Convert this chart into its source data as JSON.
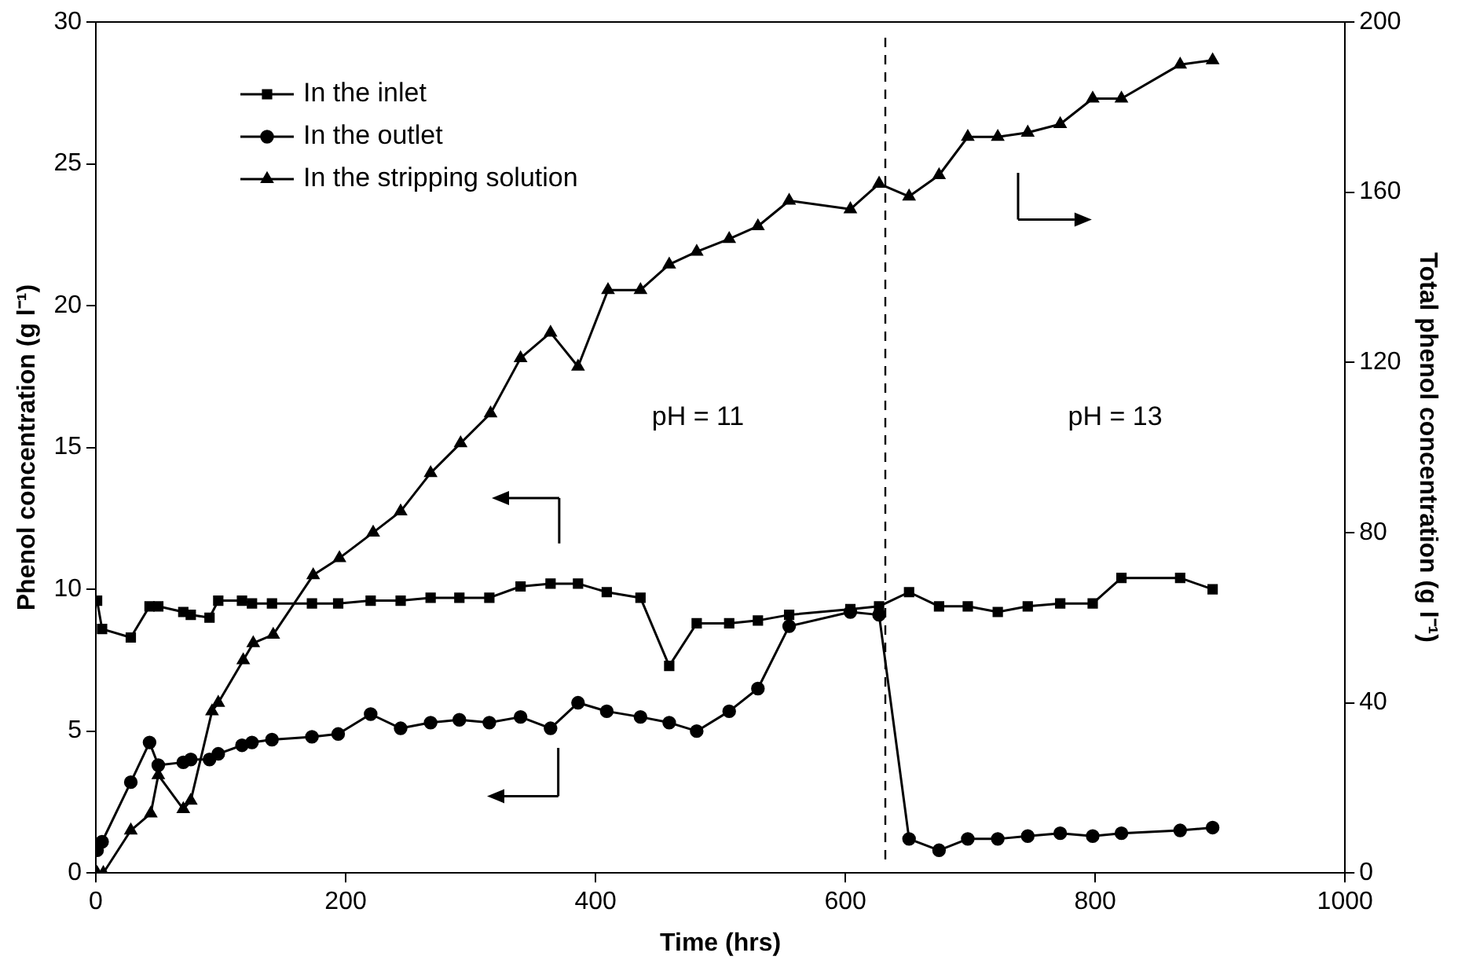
{
  "chart_data": {
    "type": "line",
    "xlabel": "Time (hrs)",
    "ylabel": "Phenol concentration (g l⁻¹)",
    "y2label": "Total phenol concentration (g l⁻¹)",
    "xlim": [
      0,
      1000
    ],
    "xticks": [
      0,
      200,
      400,
      600,
      800,
      1000
    ],
    "ylim": [
      0,
      30
    ],
    "yticks": [
      0,
      5,
      10,
      15,
      20,
      25,
      30
    ],
    "y2lim": [
      0,
      200
    ],
    "y2ticks": [
      0,
      40,
      80,
      120,
      160,
      200
    ],
    "grid": false,
    "legend": "top left",
    "line_style": "solid",
    "series": [
      {
        "name": "In the inlet",
        "color": "#000000",
        "marker": "square",
        "x": [
          1,
          5,
          28,
          43,
          50,
          70,
          76,
          91,
          98,
          117,
          125,
          141,
          173,
          194,
          220,
          244,
          268,
          291,
          315,
          340,
          364,
          386,
          409,
          436,
          459,
          481,
          507,
          530,
          555,
          604,
          627,
          651,
          675,
          698,
          722,
          746,
          772,
          798,
          821,
          868,
          894
        ],
        "values": [
          9.6,
          8.6,
          8.3,
          9.4,
          9.4,
          9.2,
          9.1,
          9.0,
          9.6,
          9.6,
          9.5,
          9.5,
          9.5,
          9.5,
          9.6,
          9.6,
          9.7,
          9.7,
          9.7,
          10.1,
          10.2,
          10.2,
          9.9,
          9.7,
          7.3,
          8.8,
          8.8,
          8.9,
          9.1,
          9.3,
          9.4,
          9.9,
          9.4,
          9.4,
          9.2,
          9.4,
          9.5,
          9.5,
          10.4,
          10.4,
          10.0
        ]
      },
      {
        "name": "In the outlet",
        "color": "#000000",
        "marker": "circle",
        "x": [
          1,
          5,
          28,
          43,
          50,
          70,
          76,
          91,
          98,
          117,
          125,
          141,
          173,
          194,
          220,
          244,
          268,
          291,
          315,
          340,
          364,
          386,
          409,
          436,
          459,
          481,
          507,
          530,
          555,
          604,
          627,
          651,
          675,
          698,
          722,
          746,
          772,
          798,
          821,
          868,
          894
        ],
        "values": [
          0.8,
          1.1,
          3.2,
          4.6,
          3.8,
          3.9,
          4.0,
          4.0,
          4.2,
          4.5,
          4.6,
          4.7,
          4.8,
          4.9,
          5.6,
          5.1,
          5.3,
          5.4,
          5.3,
          5.5,
          5.1,
          6.0,
          5.7,
          5.5,
          5.3,
          5.0,
          5.7,
          6.5,
          8.7,
          9.2,
          9.1,
          1.2,
          0.8,
          1.2,
          1.2,
          1.3,
          1.4,
          1.3,
          1.4,
          1.5,
          1.6
        ]
      },
      {
        "name": "In the stripping solution",
        "color": "#000000",
        "marker": "triangle",
        "axis": "y2",
        "x": [
          1,
          6,
          28,
          44,
          50,
          70,
          76,
          93,
          98,
          118,
          126,
          142,
          174,
          195,
          222,
          244,
          268,
          292,
          316,
          340,
          364,
          386,
          410,
          436,
          459,
          481,
          507,
          530,
          555,
          604,
          627,
          651,
          675,
          698,
          722,
          746,
          772,
          798,
          821,
          868,
          894
        ],
        "values": [
          0,
          0,
          10,
          14,
          23,
          15,
          17,
          38,
          40,
          50,
          54,
          56,
          70,
          74,
          80,
          85,
          94,
          101,
          108,
          121,
          127,
          119,
          137,
          137,
          143,
          146,
          149,
          152,
          158,
          156,
          162,
          159,
          164,
          173,
          173,
          174,
          176,
          182,
          182,
          190,
          191
        ]
      }
    ],
    "ref_lines": [
      {
        "axis": "x",
        "value": 632,
        "line_style": "dashed",
        "color": "#000000"
      }
    ],
    "annotations": [
      "pH = 11",
      "pH = 13"
    ]
  }
}
